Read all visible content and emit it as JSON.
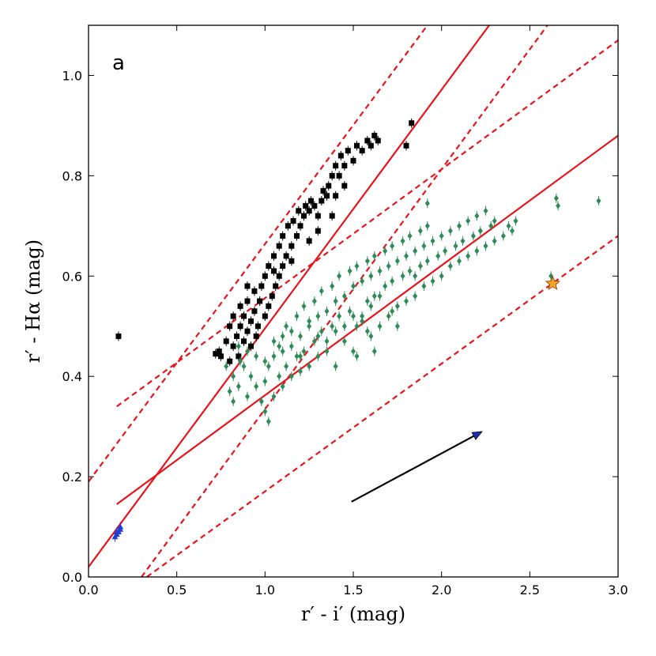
{
  "chart_data": {
    "type": "scatter",
    "panel_label": "a",
    "xlabel": "r′ - i′ (mag)",
    "ylabel": "r′ - Hα (mag)",
    "xlim": [
      0.0,
      3.0
    ],
    "ylim": [
      0.0,
      1.1
    ],
    "xticks": [
      "0.0",
      "0.5",
      "1.0",
      "1.5",
      "2.0",
      "2.5",
      "3.0"
    ],
    "xtick_values": [
      0.0,
      0.5,
      1.0,
      1.5,
      2.0,
      2.5,
      3.0
    ],
    "yticks": [
      "0.0",
      "0.2",
      "0.4",
      "0.6",
      "0.8",
      "1.0"
    ],
    "ytick_values": [
      0.0,
      0.2,
      0.4,
      0.6,
      0.8,
      1.0
    ],
    "colors": {
      "black_series": "#000000",
      "green_series": "#2e8b57",
      "blue_series": "#1f3fd6",
      "lines": "#e8141c",
      "star_fill": "#f5a623",
      "arrow": "#000000",
      "arrow_head": "#1a2fb0"
    },
    "series": [
      {
        "name": "black squares",
        "marker": "square",
        "points": [
          [
            0.72,
            0.445
          ],
          [
            0.74,
            0.45
          ],
          [
            0.75,
            0.44
          ],
          [
            0.78,
            0.47
          ],
          [
            0.8,
            0.43
          ],
          [
            0.8,
            0.5
          ],
          [
            0.82,
            0.46
          ],
          [
            0.82,
            0.52
          ],
          [
            0.84,
            0.48
          ],
          [
            0.85,
            0.44
          ],
          [
            0.86,
            0.5
          ],
          [
            0.86,
            0.54
          ],
          [
            0.88,
            0.47
          ],
          [
            0.88,
            0.52
          ],
          [
            0.9,
            0.49
          ],
          [
            0.9,
            0.55
          ],
          [
            0.92,
            0.46
          ],
          [
            0.92,
            0.51
          ],
          [
            0.94,
            0.53
          ],
          [
            0.94,
            0.57
          ],
          [
            0.95,
            0.48
          ],
          [
            0.96,
            0.5
          ],
          [
            0.97,
            0.55
          ],
          [
            0.98,
            0.58
          ],
          [
            1.0,
            0.52
          ],
          [
            1.0,
            0.6
          ],
          [
            1.02,
            0.54
          ],
          [
            1.02,
            0.62
          ],
          [
            1.04,
            0.56
          ],
          [
            1.05,
            0.64
          ],
          [
            1.06,
            0.58
          ],
          [
            1.08,
            0.6
          ],
          [
            1.08,
            0.66
          ],
          [
            1.1,
            0.62
          ],
          [
            1.1,
            0.68
          ],
          [
            1.12,
            0.64
          ],
          [
            1.13,
            0.7
          ],
          [
            1.15,
            0.66
          ],
          [
            1.16,
            0.71
          ],
          [
            1.18,
            0.68
          ],
          [
            1.19,
            0.73
          ],
          [
            1.2,
            0.7
          ],
          [
            1.22,
            0.72
          ],
          [
            1.23,
            0.74
          ],
          [
            1.25,
            0.73
          ],
          [
            1.26,
            0.75
          ],
          [
            1.28,
            0.74
          ],
          [
            1.3,
            0.72
          ],
          [
            1.32,
            0.75
          ],
          [
            1.33,
            0.77
          ],
          [
            1.35,
            0.76
          ],
          [
            1.36,
            0.78
          ],
          [
            1.38,
            0.8
          ],
          [
            1.4,
            0.82
          ],
          [
            1.42,
            0.8
          ],
          [
            1.43,
            0.84
          ],
          [
            1.45,
            0.82
          ],
          [
            1.47,
            0.85
          ],
          [
            1.5,
            0.83
          ],
          [
            1.52,
            0.86
          ],
          [
            1.55,
            0.85
          ],
          [
            1.58,
            0.87
          ],
          [
            1.6,
            0.86
          ],
          [
            1.62,
            0.88
          ],
          [
            1.64,
            0.87
          ],
          [
            1.8,
            0.86
          ],
          [
            1.83,
            0.905
          ],
          [
            1.38,
            0.72
          ],
          [
            1.4,
            0.76
          ],
          [
            1.45,
            0.78
          ],
          [
            1.3,
            0.69
          ],
          [
            0.17,
            0.48
          ],
          [
            0.9,
            0.58
          ],
          [
            1.05,
            0.61
          ],
          [
            1.15,
            0.63
          ],
          [
            1.25,
            0.67
          ]
        ]
      },
      {
        "name": "green diamonds",
        "marker": "diamond",
        "points": [
          [
            0.8,
            0.37
          ],
          [
            0.82,
            0.4
          ],
          [
            0.85,
            0.38
          ],
          [
            0.88,
            0.42
          ],
          [
            0.9,
            0.36
          ],
          [
            0.92,
            0.4
          ],
          [
            0.95,
            0.38
          ],
          [
            0.98,
            0.35
          ],
          [
            1.0,
            0.33
          ],
          [
            1.0,
            0.39
          ],
          [
            1.02,
            0.31
          ],
          [
            1.02,
            0.42
          ],
          [
            1.05,
            0.36
          ],
          [
            1.05,
            0.44
          ],
          [
            1.08,
            0.4
          ],
          [
            1.08,
            0.46
          ],
          [
            1.1,
            0.38
          ],
          [
            1.1,
            0.48
          ],
          [
            1.12,
            0.42
          ],
          [
            1.12,
            0.5
          ],
          [
            1.15,
            0.4
          ],
          [
            1.15,
            0.46
          ],
          [
            1.18,
            0.44
          ],
          [
            1.18,
            0.52
          ],
          [
            1.2,
            0.41
          ],
          [
            1.2,
            0.48
          ],
          [
            1.22,
            0.45
          ],
          [
            1.22,
            0.54
          ],
          [
            1.25,
            0.42
          ],
          [
            1.25,
            0.5
          ],
          [
            1.28,
            0.47
          ],
          [
            1.28,
            0.55
          ],
          [
            1.3,
            0.44
          ],
          [
            1.3,
            0.52
          ],
          [
            1.32,
            0.49
          ],
          [
            1.32,
            0.57
          ],
          [
            1.35,
            0.45
          ],
          [
            1.35,
            0.53
          ],
          [
            1.38,
            0.5
          ],
          [
            1.38,
            0.58
          ],
          [
            1.4,
            0.42
          ],
          [
            1.4,
            0.55
          ],
          [
            1.42,
            0.52
          ],
          [
            1.42,
            0.6
          ],
          [
            1.45,
            0.47
          ],
          [
            1.45,
            0.56
          ],
          [
            1.48,
            0.53
          ],
          [
            1.48,
            0.61
          ],
          [
            1.5,
            0.45
          ],
          [
            1.5,
            0.58
          ],
          [
            1.52,
            0.5
          ],
          [
            1.52,
            0.62
          ],
          [
            1.55,
            0.52
          ],
          [
            1.55,
            0.59
          ],
          [
            1.58,
            0.55
          ],
          [
            1.58,
            0.63
          ],
          [
            1.6,
            0.48
          ],
          [
            1.6,
            0.6
          ],
          [
            1.62,
            0.56
          ],
          [
            1.62,
            0.64
          ],
          [
            1.65,
            0.5
          ],
          [
            1.65,
            0.61
          ],
          [
            1.68,
            0.58
          ],
          [
            1.68,
            0.65
          ],
          [
            1.7,
            0.52
          ],
          [
            1.7,
            0.62
          ],
          [
            1.72,
            0.59
          ],
          [
            1.72,
            0.66
          ],
          [
            1.75,
            0.54
          ],
          [
            1.75,
            0.63
          ],
          [
            1.78,
            0.6
          ],
          [
            1.78,
            0.67
          ],
          [
            1.8,
            0.55
          ],
          [
            1.8,
            0.64
          ],
          [
            1.82,
            0.61
          ],
          [
            1.82,
            0.68
          ],
          [
            1.85,
            0.56
          ],
          [
            1.85,
            0.65
          ],
          [
            1.88,
            0.62
          ],
          [
            1.88,
            0.69
          ],
          [
            1.9,
            0.58
          ],
          [
            1.9,
            0.66
          ],
          [
            1.92,
            0.63
          ],
          [
            1.92,
            0.7
          ],
          [
            1.95,
            0.59
          ],
          [
            1.95,
            0.67
          ],
          [
            1.98,
            0.64
          ],
          [
            2.0,
            0.6
          ],
          [
            2.0,
            0.68
          ],
          [
            2.02,
            0.65
          ],
          [
            2.05,
            0.62
          ],
          [
            2.05,
            0.69
          ],
          [
            2.08,
            0.66
          ],
          [
            2.1,
            0.63
          ],
          [
            2.1,
            0.7
          ],
          [
            2.12,
            0.67
          ],
          [
            2.15,
            0.64
          ],
          [
            2.15,
            0.71
          ],
          [
            2.18,
            0.68
          ],
          [
            2.2,
            0.65
          ],
          [
            2.2,
            0.72
          ],
          [
            2.22,
            0.69
          ],
          [
            2.25,
            0.66
          ],
          [
            2.25,
            0.73
          ],
          [
            2.28,
            0.7
          ],
          [
            2.3,
            0.67
          ],
          [
            2.3,
            0.71
          ],
          [
            2.35,
            0.68
          ],
          [
            2.38,
            0.7
          ],
          [
            2.4,
            0.69
          ],
          [
            2.42,
            0.71
          ],
          [
            1.55,
            0.51
          ],
          [
            1.72,
            0.53
          ],
          [
            1.4,
            0.49
          ],
          [
            1.6,
            0.54
          ],
          [
            1.3,
            0.48
          ],
          [
            1.1,
            0.45
          ],
          [
            1.2,
            0.44
          ],
          [
            1.0,
            0.43
          ],
          [
            0.95,
            0.44
          ],
          [
            0.9,
            0.45
          ],
          [
            0.85,
            0.46
          ],
          [
            1.05,
            0.47
          ],
          [
            1.15,
            0.49
          ],
          [
            1.25,
            0.51
          ],
          [
            1.35,
            0.47
          ],
          [
            1.45,
            0.5
          ],
          [
            1.5,
            0.52
          ],
          [
            1.92,
            0.745
          ],
          [
            2.65,
            0.755
          ],
          [
            2.66,
            0.74
          ],
          [
            2.89,
            0.75
          ],
          [
            2.62,
            0.6
          ],
          [
            1.75,
            0.5
          ],
          [
            1.65,
            0.56
          ],
          [
            1.85,
            0.6
          ],
          [
            0.78,
            0.42
          ],
          [
            0.82,
            0.35
          ],
          [
            0.86,
            0.43
          ],
          [
            1.52,
            0.44
          ],
          [
            1.62,
            0.45
          ],
          [
            1.58,
            0.49
          ]
        ]
      },
      {
        "name": "blue triangles",
        "marker": "triangle",
        "points": [
          [
            0.15,
            0.08
          ],
          [
            0.16,
            0.085
          ],
          [
            0.17,
            0.09
          ],
          [
            0.18,
            0.1
          ],
          [
            0.16,
            0.09
          ],
          [
            0.18,
            0.095
          ]
        ]
      },
      {
        "name": "star",
        "marker": "star",
        "points": [
          [
            2.63,
            0.585
          ]
        ]
      }
    ],
    "lines": [
      {
        "name": "solid-line-steep",
        "style": "solid",
        "from": [
          0.0,
          0.02
        ],
        "to": [
          2.27,
          1.1
        ]
      },
      {
        "name": "solid-line-shallow",
        "style": "solid",
        "from": [
          0.16,
          0.145
        ],
        "to": [
          3.0,
          0.88
        ]
      },
      {
        "name": "dashed-line-upper-steep",
        "style": "dashed",
        "from": [
          0.0,
          0.19
        ],
        "to": [
          1.92,
          1.1
        ]
      },
      {
        "name": "dashed-line-lower-steep",
        "style": "dashed",
        "from": [
          0.3,
          0.0
        ],
        "to": [
          2.6,
          1.1
        ]
      },
      {
        "name": "dashed-line-upper-shallow",
        "style": "dashed",
        "from": [
          0.16,
          0.34
        ],
        "to": [
          3.0,
          1.07
        ]
      },
      {
        "name": "dashed-line-lower-shallow",
        "style": "dashed",
        "from": [
          0.33,
          0.0
        ],
        "to": [
          3.0,
          0.68
        ]
      }
    ],
    "arrow": {
      "from": [
        1.49,
        0.15
      ],
      "to": [
        2.23,
        0.29
      ]
    }
  }
}
